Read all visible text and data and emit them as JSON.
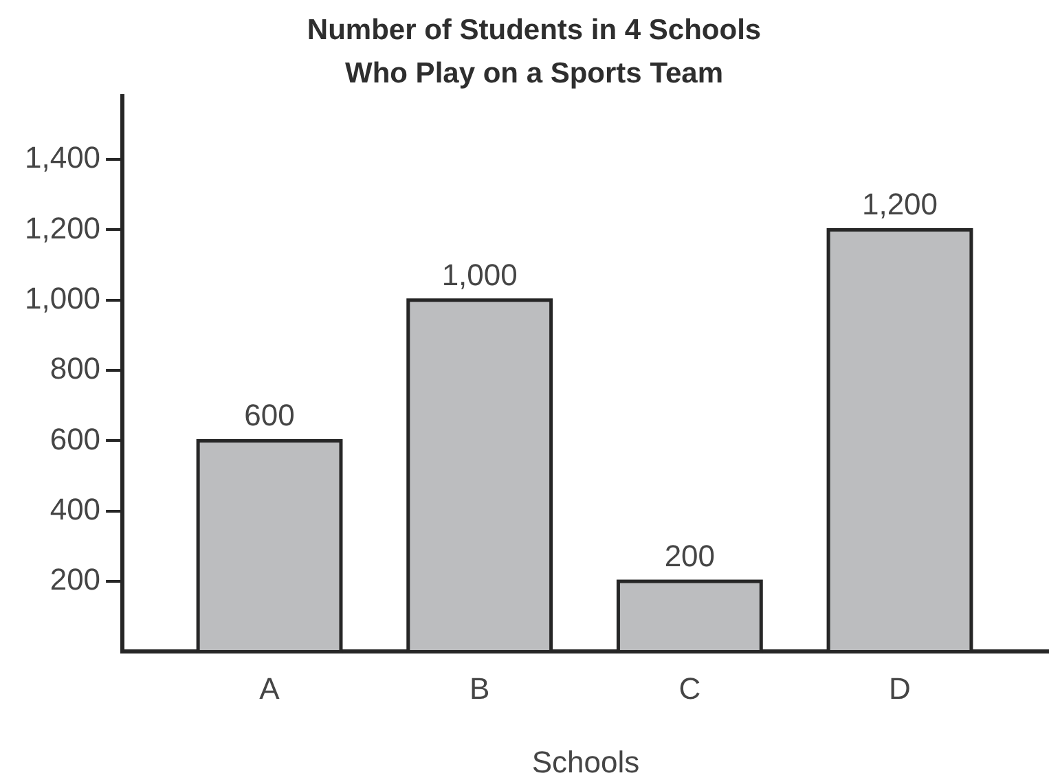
{
  "chart_data": {
    "type": "bar",
    "title": "Number of Students in 4 Schools\nWho Play on a Sports Team",
    "xlabel": "Schools",
    "categories": [
      "A",
      "B",
      "C",
      "D"
    ],
    "values": [
      600,
      1000,
      200,
      1200
    ],
    "color": "#bcbdbf",
    "value_labels": [
      "600",
      "1,000",
      "200",
      "1,200"
    ],
    "ylim": [
      0,
      1580
    ],
    "yticks": [
      200,
      400,
      600,
      800,
      {
        "value": 1000,
        "label": "1,000"
      },
      {
        "value": 1200,
        "label": "1,200"
      },
      {
        "value": 1400,
        "label": "1,400"
      }
    ]
  }
}
